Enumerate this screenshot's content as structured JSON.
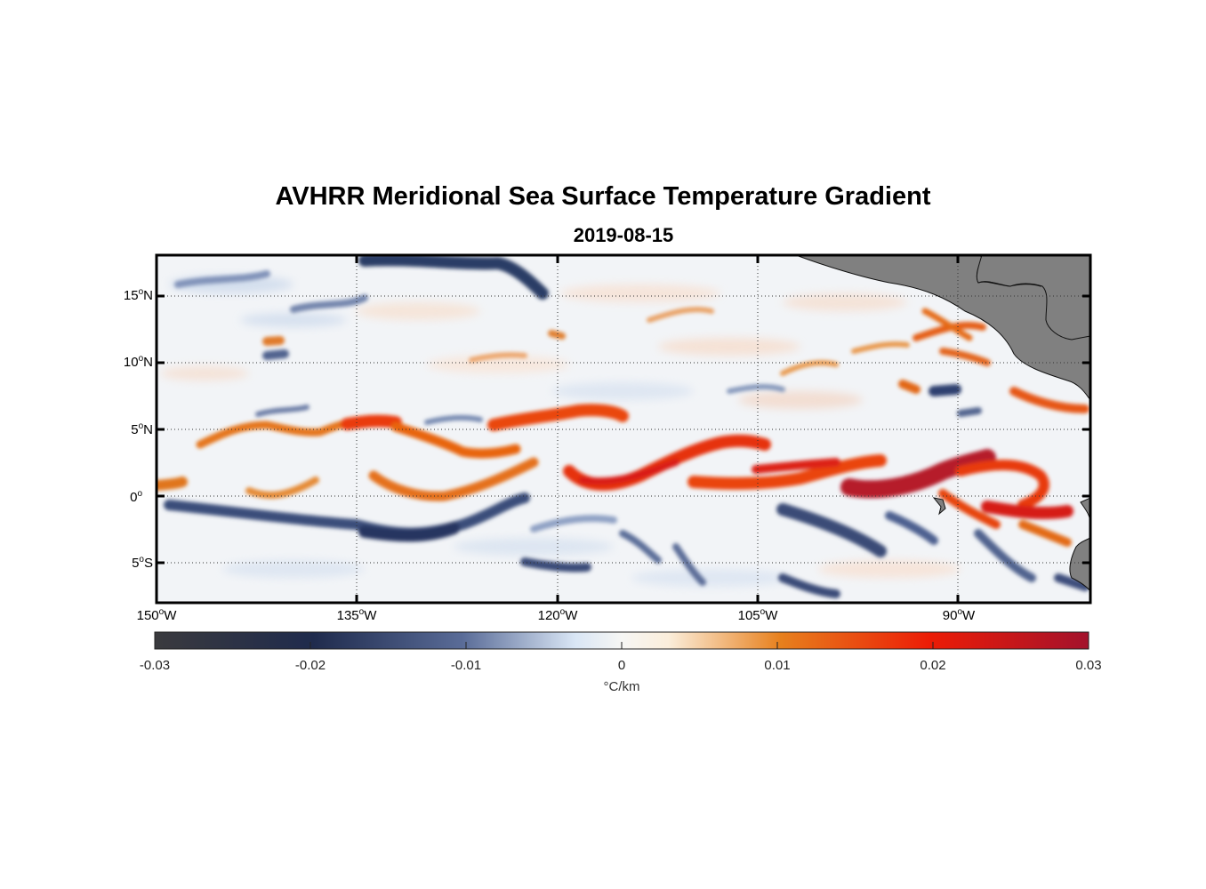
{
  "title": "AVHRR Meridional Sea Surface Temperature Gradient",
  "date": "2019-08-15",
  "map": {
    "lon_range": [
      -150,
      -80
    ],
    "lat_range": [
      -8,
      18
    ],
    "lat_ticks": [
      {
        "value": 15,
        "label": "15",
        "hemi": "N"
      },
      {
        "value": 10,
        "label": "10",
        "hemi": "N"
      },
      {
        "value": 5,
        "label": "5",
        "hemi": "N"
      },
      {
        "value": 0,
        "label": "0",
        "hemi": ""
      },
      {
        "value": -5,
        "label": "5",
        "hemi": "S"
      }
    ],
    "lon_ticks": [
      {
        "value": -150,
        "label": "150",
        "hemi": "W"
      },
      {
        "value": -135,
        "label": "135",
        "hemi": "W"
      },
      {
        "value": -120,
        "label": "120",
        "hemi": "W"
      },
      {
        "value": -105,
        "label": "105",
        "hemi": "W"
      },
      {
        "value": -90,
        "label": "90",
        "hemi": "W"
      }
    ],
    "degree_symbol": "o",
    "land_color": "#808080",
    "grid": "dotted"
  },
  "colorbar": {
    "range": [
      -0.03,
      0.03
    ],
    "ticks": [
      {
        "value": -0.03,
        "label": "-0.03"
      },
      {
        "value": -0.02,
        "label": "-0.02"
      },
      {
        "value": -0.01,
        "label": "-0.01"
      },
      {
        "value": 0,
        "label": "0"
      },
      {
        "value": 0.01,
        "label": "0.01"
      },
      {
        "value": 0.02,
        "label": "0.02"
      },
      {
        "value": 0.03,
        "label": "0.03"
      }
    ],
    "unit": "°C/km",
    "colors": [
      "#3a3a3e",
      "#1f2b4d",
      "#5a6c98",
      "#d9e6f5",
      "#fbf4e6",
      "#e7801d",
      "#ec1c06",
      "#a3122c"
    ]
  }
}
